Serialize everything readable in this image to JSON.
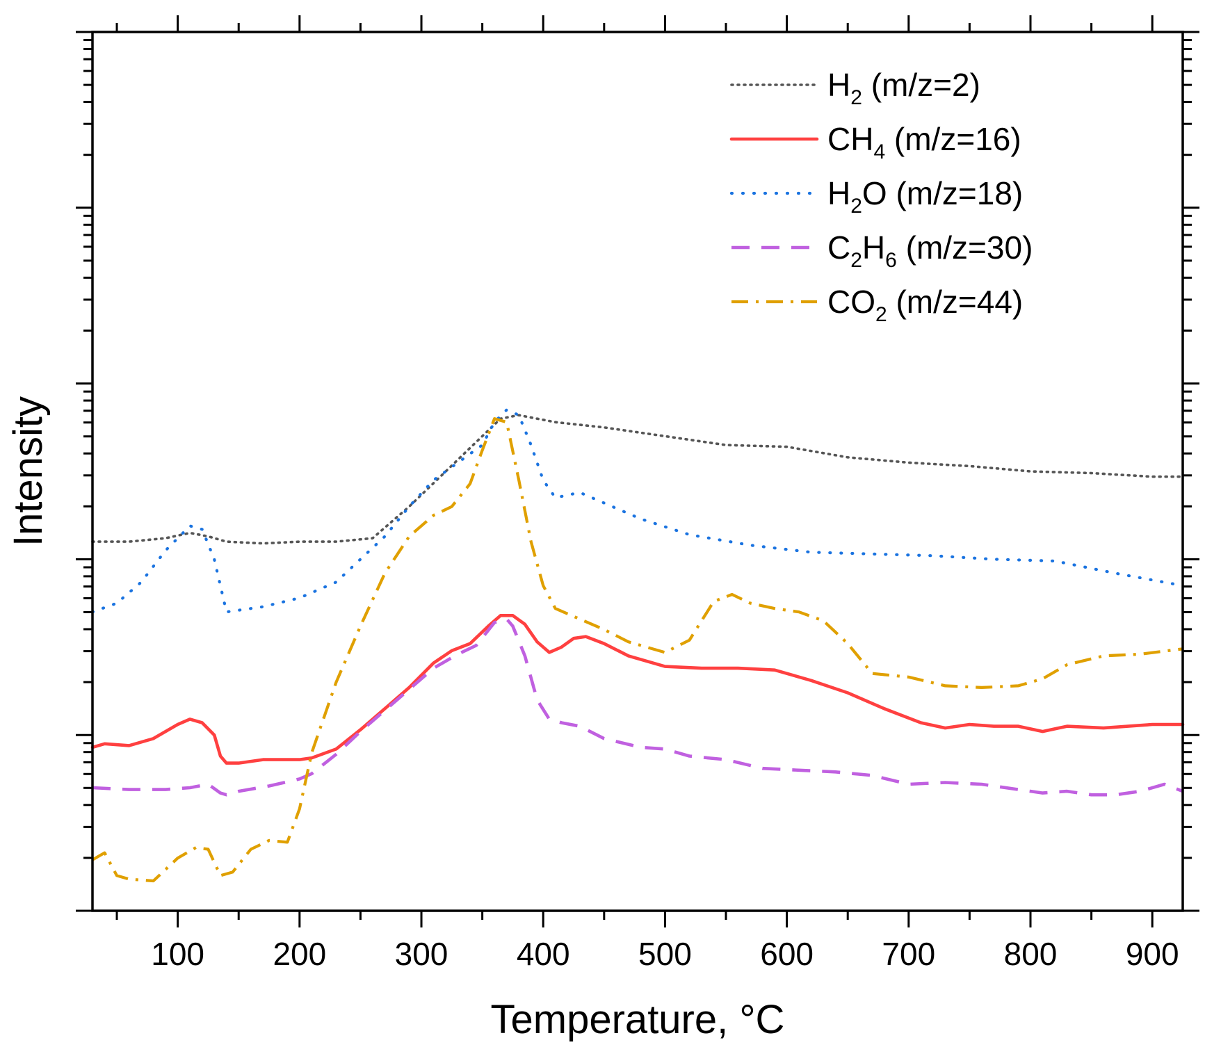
{
  "chart_data": {
    "type": "line",
    "title": "",
    "xlabel": "Temperature, °C",
    "ylabel": "Intensity",
    "xlim": [
      30,
      925
    ],
    "ylim_decades": [
      0,
      5
    ],
    "y_scale": "log",
    "y_ticks_visible": false,
    "grid": false,
    "legend_position": "top-right",
    "x_ticks": [
      100,
      200,
      300,
      400,
      500,
      600,
      700,
      800,
      900
    ],
    "x_tick_labels": [
      "100",
      "200",
      "300",
      "400",
      "500",
      "600",
      "700",
      "800",
      "900"
    ],
    "series": [
      {
        "name": "H2 (m/z=2)",
        "legend": {
          "pre": "H",
          "sub": "2",
          "post": " (m/z=2)"
        },
        "color": "#555555",
        "style": "dotted",
        "x": [
          30,
          60,
          90,
          110,
          125,
          140,
          170,
          200,
          230,
          260,
          290,
          320,
          350,
          365,
          380,
          395,
          410,
          450,
          500,
          550,
          600,
          650,
          700,
          750,
          800,
          850,
          900,
          925
        ],
        "y": [
          2.1,
          2.1,
          2.12,
          2.15,
          2.13,
          2.1,
          2.09,
          2.1,
          2.1,
          2.12,
          2.3,
          2.5,
          2.7,
          2.8,
          2.82,
          2.8,
          2.78,
          2.75,
          2.7,
          2.65,
          2.64,
          2.58,
          2.55,
          2.53,
          2.5,
          2.49,
          2.47,
          2.47
        ]
      },
      {
        "name": "CH4 (m/z=16)",
        "legend": {
          "pre": "CH",
          "sub": "4",
          "post": " (m/z=16)"
        },
        "color": "#ff4040",
        "style": "solid",
        "x": [
          30,
          40,
          60,
          80,
          100,
          110,
          120,
          130,
          135,
          140,
          150,
          170,
          200,
          210,
          230,
          250,
          270,
          290,
          310,
          325,
          340,
          355,
          365,
          375,
          385,
          395,
          405,
          415,
          425,
          435,
          450,
          470,
          500,
          530,
          560,
          590,
          620,
          650,
          680,
          710,
          730,
          750,
          770,
          790,
          810,
          830,
          860,
          880,
          900,
          925
        ],
        "y": [
          0.93,
          0.95,
          0.94,
          0.98,
          1.06,
          1.09,
          1.07,
          1.0,
          0.88,
          0.84,
          0.84,
          0.86,
          0.86,
          0.87,
          0.92,
          1.03,
          1.15,
          1.27,
          1.41,
          1.48,
          1.52,
          1.62,
          1.68,
          1.68,
          1.63,
          1.53,
          1.47,
          1.5,
          1.55,
          1.56,
          1.52,
          1.45,
          1.39,
          1.38,
          1.38,
          1.37,
          1.31,
          1.24,
          1.15,
          1.07,
          1.04,
          1.06,
          1.05,
          1.05,
          1.02,
          1.05,
          1.04,
          1.05,
          1.06,
          1.06
        ]
      },
      {
        "name": "H2O (m/z=18)",
        "legend": {
          "pre": "H",
          "sub": "2",
          "post": "O (m/z=18)"
        },
        "color": "#1a73e0",
        "style": "dotted-blue",
        "x": [
          30,
          50,
          70,
          90,
          110,
          120,
          130,
          140,
          170,
          200,
          230,
          250,
          270,
          290,
          310,
          330,
          350,
          360,
          370,
          380,
          390,
          400,
          410,
          430,
          450,
          480,
          520,
          570,
          620,
          670,
          720,
          770,
          820,
          870,
          925
        ],
        "y": [
          1.7,
          1.75,
          1.87,
          2.05,
          2.19,
          2.17,
          2.0,
          1.7,
          1.73,
          1.78,
          1.87,
          2.0,
          2.13,
          2.3,
          2.45,
          2.55,
          2.65,
          2.78,
          2.85,
          2.82,
          2.65,
          2.45,
          2.35,
          2.38,
          2.32,
          2.23,
          2.14,
          2.08,
          2.04,
          2.03,
          2.02,
          2.0,
          1.99,
          1.92,
          1.85
        ]
      },
      {
        "name": "C2H6 (m/z=30)",
        "legend": {
          "pre": "C",
          "sub": "2",
          "post": "H",
          "sub2": "6",
          "post2": " (m/z=30)"
        },
        "color": "#c060e0",
        "style": "dashed",
        "x": [
          30,
          60,
          90,
          110,
          125,
          135,
          140,
          150,
          175,
          200,
          210,
          230,
          250,
          280,
          310,
          330,
          345,
          360,
          370,
          375,
          385,
          395,
          405,
          415,
          430,
          450,
          480,
          500,
          520,
          550,
          580,
          610,
          640,
          670,
          700,
          730,
          760,
          790,
          810,
          830,
          850,
          870,
          890,
          910,
          925
        ],
        "y": [
          0.7,
          0.69,
          0.69,
          0.7,
          0.72,
          0.67,
          0.66,
          0.68,
          0.71,
          0.75,
          0.78,
          0.89,
          1.02,
          1.2,
          1.38,
          1.46,
          1.51,
          1.64,
          1.66,
          1.62,
          1.45,
          1.2,
          1.09,
          1.07,
          1.05,
          0.98,
          0.93,
          0.92,
          0.88,
          0.86,
          0.81,
          0.8,
          0.79,
          0.77,
          0.72,
          0.73,
          0.72,
          0.69,
          0.67,
          0.68,
          0.66,
          0.66,
          0.68,
          0.72,
          0.68
        ]
      },
      {
        "name": "CO2 (m/z=44)",
        "legend": {
          "pre": "CO",
          "sub": "2",
          "post": " (m/z=44)"
        },
        "color": "#e0a000",
        "style": "dashdot",
        "x": [
          30,
          40,
          50,
          60,
          80,
          100,
          115,
          125,
          135,
          145,
          160,
          175,
          190,
          200,
          210,
          230,
          250,
          270,
          290,
          310,
          325,
          340,
          350,
          360,
          370,
          380,
          390,
          400,
          410,
          430,
          450,
          470,
          500,
          520,
          540,
          555,
          570,
          590,
          610,
          630,
          650,
          670,
          700,
          730,
          760,
          790,
          810,
          830,
          860,
          890,
          925
        ],
        "y": [
          0.29,
          0.33,
          0.2,
          0.18,
          0.17,
          0.3,
          0.36,
          0.35,
          0.2,
          0.22,
          0.35,
          0.4,
          0.39,
          0.58,
          0.9,
          1.3,
          1.62,
          1.92,
          2.13,
          2.25,
          2.3,
          2.43,
          2.62,
          2.8,
          2.78,
          2.45,
          2.1,
          1.85,
          1.72,
          1.66,
          1.6,
          1.53,
          1.47,
          1.54,
          1.76,
          1.8,
          1.75,
          1.72,
          1.7,
          1.65,
          1.52,
          1.35,
          1.33,
          1.28,
          1.27,
          1.28,
          1.32,
          1.4,
          1.45,
          1.46,
          1.49
        ]
      }
    ]
  }
}
